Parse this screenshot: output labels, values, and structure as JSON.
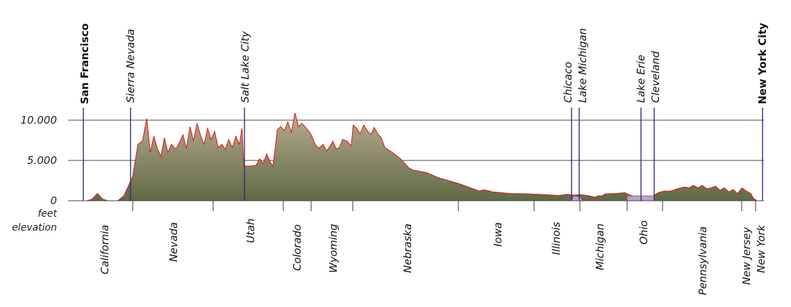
{
  "chart_data": {
    "type": "area",
    "y_axis": {
      "ticks": [
        {
          "value": 0,
          "label": "0"
        },
        {
          "value": 5000,
          "label": "5.000"
        },
        {
          "value": 10000,
          "label": "10.000"
        }
      ],
      "unit_lines": [
        "feet",
        "elevation"
      ]
    },
    "colors": {
      "terrain_dark": "#5f6a45",
      "terrain_light": "#b7ab8e",
      "outline": "#dd1111",
      "marker": "#2a2a80",
      "lake": "#b4a6cf",
      "grid": "#444444"
    },
    "landmarks": [
      {
        "label": "San Francisco",
        "major": true
      },
      {
        "label": "Sierra Nevada",
        "major": false
      },
      {
        "label": "Salt Lake City",
        "major": false
      },
      {
        "label": "Chicaco",
        "major": false
      },
      {
        "label": "Lake Michigan",
        "major": false
      },
      {
        "label": "Lake Erie",
        "major": false
      },
      {
        "label": "Cleveland",
        "major": false
      },
      {
        "label": "New York City",
        "major": true
      }
    ],
    "states": [
      "California",
      "Nevada",
      "Utah",
      "Colorado",
      "Wyoming",
      "Nebraska",
      "Iowa",
      "Illinois",
      "Michigan",
      "Ohio",
      "Pennsylvania",
      "New Jersey",
      "New York"
    ],
    "profile": [
      [
        0,
        0
      ],
      [
        0.6,
        200
      ],
      [
        1.2,
        900
      ],
      [
        1.8,
        200
      ],
      [
        2.4,
        0
      ],
      [
        3.5,
        0
      ],
      [
        4.2,
        600
      ],
      [
        5.2,
        3000
      ],
      [
        5.8,
        7000
      ],
      [
        6.3,
        7400
      ],
      [
        6.8,
        10200
      ],
      [
        7.2,
        6000
      ],
      [
        7.6,
        8000
      ],
      [
        8.0,
        6500
      ],
      [
        8.4,
        5500
      ],
      [
        8.8,
        7800
      ],
      [
        9.2,
        6000
      ],
      [
        9.6,
        7000
      ],
      [
        10.1,
        6400
      ],
      [
        10.5,
        7200
      ],
      [
        10.9,
        8200
      ],
      [
        11.3,
        6500
      ],
      [
        11.7,
        9200
      ],
      [
        12.1,
        7400
      ],
      [
        12.5,
        9600
      ],
      [
        12.9,
        8100
      ],
      [
        13.3,
        7000
      ],
      [
        13.7,
        9000
      ],
      [
        14.1,
        7600
      ],
      [
        14.5,
        8600
      ],
      [
        14.9,
        6600
      ],
      [
        15.3,
        7000
      ],
      [
        15.7,
        6400
      ],
      [
        16.1,
        7600
      ],
      [
        16.5,
        6600
      ],
      [
        16.9,
        8000
      ],
      [
        17.3,
        7000
      ],
      [
        17.6,
        9000
      ],
      [
        17.8,
        4300
      ],
      [
        18.5,
        4300
      ],
      [
        19.2,
        4400
      ],
      [
        19.6,
        5200
      ],
      [
        20.0,
        4600
      ],
      [
        20.4,
        5800
      ],
      [
        20.8,
        4800
      ],
      [
        21.1,
        4300
      ],
      [
        21.3,
        6000
      ],
      [
        21.6,
        8800
      ],
      [
        22.0,
        9200
      ],
      [
        22.4,
        8700
      ],
      [
        22.8,
        9800
      ],
      [
        23.2,
        8500
      ],
      [
        23.6,
        10900
      ],
      [
        24.0,
        9200
      ],
      [
        24.4,
        9600
      ],
      [
        24.9,
        9000
      ],
      [
        25.4,
        8300
      ],
      [
        25.9,
        7000
      ],
      [
        26.3,
        6500
      ],
      [
        26.8,
        7000
      ],
      [
        27.2,
        6200
      ],
      [
        27.6,
        6800
      ],
      [
        27.9,
        7400
      ],
      [
        28.3,
        6400
      ],
      [
        28.7,
        6700
      ],
      [
        29.0,
        7600
      ],
      [
        29.5,
        7400
      ],
      [
        30.0,
        6800
      ],
      [
        30.2,
        9400
      ],
      [
        30.6,
        9000
      ],
      [
        31.0,
        8300
      ],
      [
        31.4,
        9400
      ],
      [
        31.8,
        8700
      ],
      [
        32.2,
        8200
      ],
      [
        32.6,
        9100
      ],
      [
        33.0,
        8300
      ],
      [
        33.4,
        7800
      ],
      [
        33.8,
        6600
      ],
      [
        34.5,
        6100
      ],
      [
        35.6,
        5200
      ],
      [
        36.5,
        4100
      ],
      [
        37.0,
        3800
      ],
      [
        38.5,
        3500
      ],
      [
        40.0,
        2800
      ],
      [
        42.0,
        2200
      ],
      [
        43.5,
        1600
      ],
      [
        44.5,
        1200
      ],
      [
        45.0,
        1350
      ],
      [
        45.5,
        1250
      ],
      [
        46.0,
        1100
      ],
      [
        48.0,
        900
      ],
      [
        50.0,
        850
      ],
      [
        52.0,
        750
      ],
      [
        53.5,
        650
      ],
      [
        54.5,
        800
      ],
      [
        55.2,
        700
      ],
      [
        56.0,
        750
      ],
      [
        57.0,
        600
      ],
      [
        57.6,
        450
      ],
      [
        58.0,
        600
      ],
      [
        58.4,
        600
      ],
      [
        58.8,
        850
      ],
      [
        60.0,
        900
      ],
      [
        61.0,
        1000
      ],
      [
        61.5,
        750
      ],
      [
        62.0,
        580
      ],
      [
        63.5,
        580
      ],
      [
        64.2,
        580
      ],
      [
        64.8,
        1000
      ],
      [
        65.5,
        1200
      ],
      [
        66.2,
        1200
      ],
      [
        67.0,
        1500
      ],
      [
        67.8,
        1700
      ],
      [
        68.3,
        1600
      ],
      [
        68.8,
        1900
      ],
      [
        69.3,
        1600
      ],
      [
        69.8,
        1900
      ],
      [
        70.3,
        1500
      ],
      [
        70.8,
        1600
      ],
      [
        71.3,
        1800
      ],
      [
        71.8,
        1300
      ],
      [
        72.3,
        1600
      ],
      [
        72.8,
        1100
      ],
      [
        73.3,
        1400
      ],
      [
        73.8,
        900
      ],
      [
        74.3,
        1600
      ],
      [
        74.8,
        1200
      ],
      [
        75.3,
        900
      ],
      [
        75.6,
        300
      ],
      [
        76.0,
        0
      ]
    ]
  }
}
